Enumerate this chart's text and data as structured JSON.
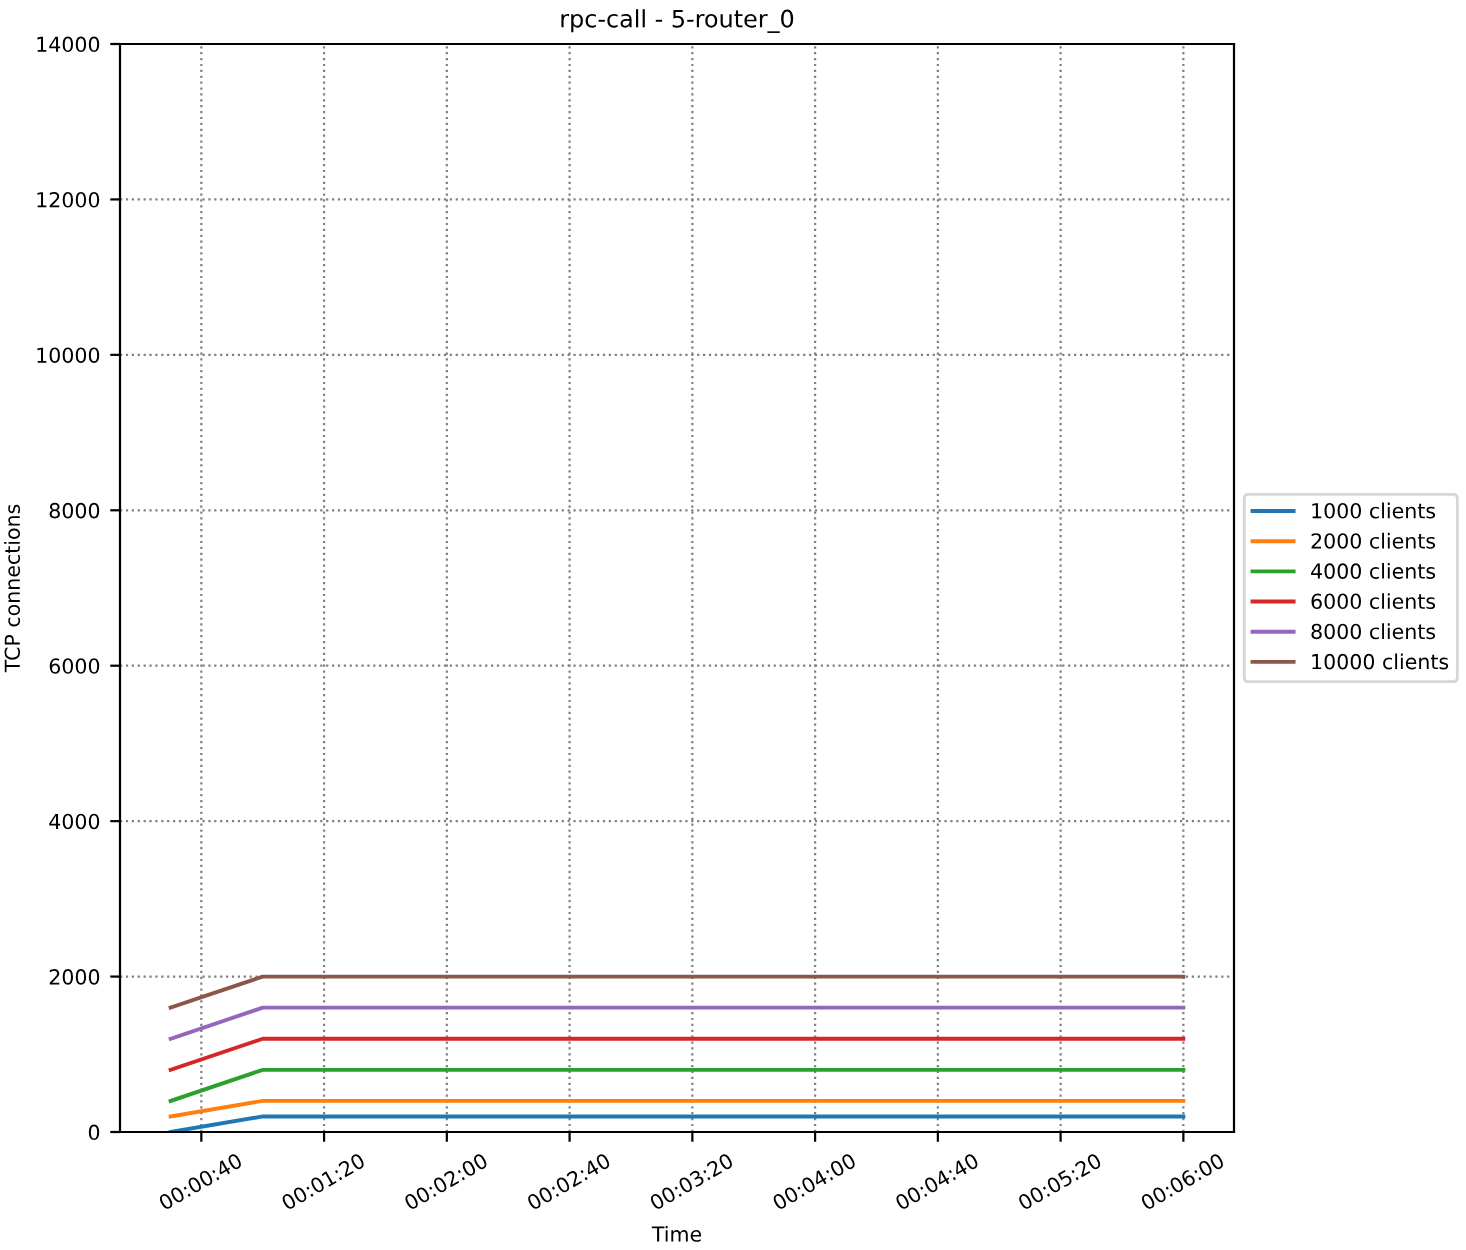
{
  "chart_data": {
    "type": "line",
    "title": "rpc-call - 5-router_0",
    "xlabel": "Time",
    "ylabel": "TCP connections",
    "x": [
      0.008333333,
      0.016666667,
      0.1
    ],
    "series": [
      {
        "name": "1000 clients",
        "color": "#1f77b4",
        "values": [
          0,
          200,
          200
        ]
      },
      {
        "name": "2000 clients",
        "color": "#ff7f0e",
        "values": [
          200,
          400,
          400
        ]
      },
      {
        "name": "4000 clients",
        "color": "#2ca02c",
        "values": [
          400,
          800,
          800
        ]
      },
      {
        "name": "6000 clients",
        "color": "#d62728",
        "values": [
          800,
          1200,
          1200
        ]
      },
      {
        "name": "8000 clients",
        "color": "#9467bd",
        "values": [
          1200,
          1600,
          1600
        ]
      },
      {
        "name": "10000 clients",
        "color": "#8c564b",
        "values": [
          1600,
          2000,
          2000
        ]
      }
    ],
    "xlim": [
      0.00375,
      0.104583333
    ],
    "xticks": [
      {
        "value": 0.011111111,
        "label": "00:00:40"
      },
      {
        "value": 0.022222222,
        "label": "00:01:20"
      },
      {
        "value": 0.033333333,
        "label": "00:02:00"
      },
      {
        "value": 0.044444444,
        "label": "00:02:40"
      },
      {
        "value": 0.055555556,
        "label": "00:03:20"
      },
      {
        "value": 0.066666667,
        "label": "00:04:00"
      },
      {
        "value": 0.077777778,
        "label": "00:04:40"
      },
      {
        "value": 0.088888889,
        "label": "00:05:20"
      },
      {
        "value": 0.1,
        "label": "00:06:00"
      }
    ],
    "ylim": [
      0,
      14000
    ],
    "yticks": [
      0,
      2000,
      4000,
      6000,
      8000,
      10000,
      12000,
      14000
    ],
    "grid": true,
    "legend": "right",
    "line_style": "solid"
  }
}
